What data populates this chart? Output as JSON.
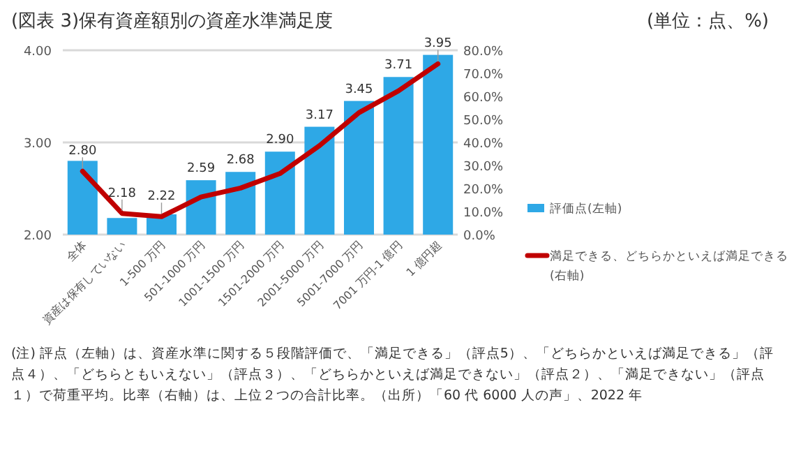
{
  "chart_data": {
    "type": "bar",
    "title": "(図表 3)保有資産額別の資産水準満足度",
    "subtitle": "(単位：点、%)",
    "categories": [
      "全体",
      "資産は保有していない",
      "1-500 万円",
      "501-1000 万円",
      "1001-1500 万円",
      "1501-2000 万円",
      "2001-5000 万円",
      "5001-7000 万円",
      "7001 万円-1 億円",
      "1 億円超"
    ],
    "series": [
      {
        "name": "評価点(左軸)",
        "type": "bar",
        "color": "#2ea8e6",
        "values": [
          2.8,
          2.18,
          2.22,
          2.59,
          2.68,
          2.9,
          3.17,
          3.45,
          3.71,
          3.95
        ],
        "value_labels": [
          "2.80",
          "2.18",
          "2.22",
          "2.59",
          "2.68",
          "2.90",
          "3.17",
          "3.45",
          "3.71",
          "3.95"
        ]
      },
      {
        "name": "満足できる、どちらかといえば満足できる(右軸)",
        "type": "line",
        "axis": "y2",
        "color": "#c00000",
        "values": [
          27.5,
          9.2,
          7.8,
          16.3,
          20.2,
          26.5,
          38.6,
          52.9,
          62.4,
          74.1
        ]
      }
    ],
    "ylim": [
      2,
      4
    ],
    "yticks": [
      {
        "value": 2,
        "label": "2.00"
      },
      {
        "value": 3,
        "label": "3.00"
      },
      {
        "value": 4,
        "label": "4.00"
      }
    ],
    "y2lim": [
      0,
      80
    ],
    "y2ticks": [
      {
        "value": 0,
        "label": "0.0%"
      },
      {
        "value": 10,
        "label": "10.0%"
      },
      {
        "value": 20,
        "label": "20.0%"
      },
      {
        "value": 30,
        "label": "30.0%"
      },
      {
        "value": 40,
        "label": "40.0%"
      },
      {
        "value": 50,
        "label": "50.0%"
      },
      {
        "value": 60,
        "label": "60.0%"
      },
      {
        "value": 70,
        "label": "70.0%"
      },
      {
        "value": 80,
        "label": "80.0%"
      }
    ],
    "grid": "y",
    "legend": "right",
    "annotations": [
      "(注) 評点（左軸）は、資産水準に関する５段階評価で、「満足できる」（評点5）、「どちらかといえば満足できる」（評点４）、「どちらともいえない」（評点３）、「どちらかといえば満足できない」（評点２）、「満足できない」（評点１）で荷重平均。比率（右軸）は、上位２つの合計比率。（出所）「60 代 6000 人の声」、2022 年"
    ]
  }
}
